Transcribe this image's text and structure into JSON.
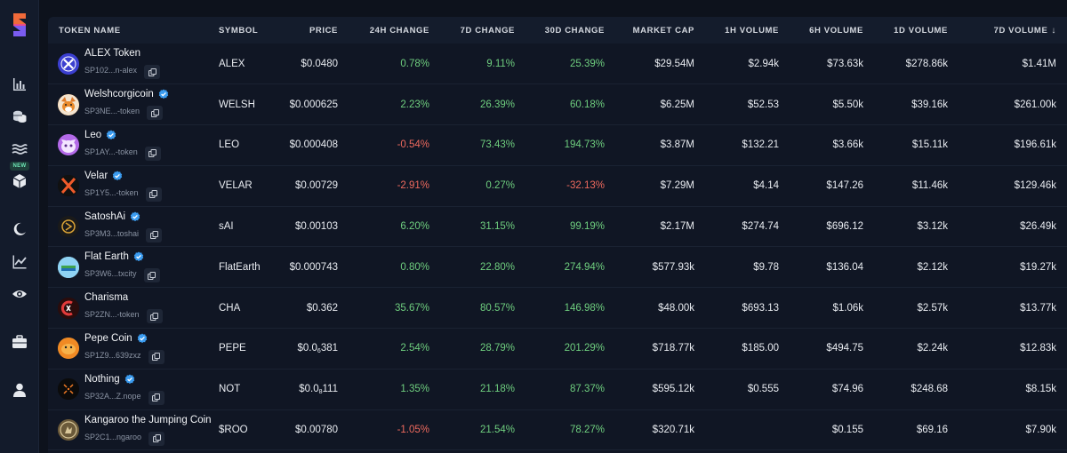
{
  "sidebar": {
    "logo": "stxtools-logo",
    "new_badge": "NEW",
    "items": [
      {
        "icon": "bar-chart-icon"
      },
      {
        "icon": "coins-stack-icon"
      },
      {
        "icon": "waves-icon"
      },
      {
        "icon": "cube-icon"
      },
      {
        "icon": "moon-icon"
      },
      {
        "icon": "trending-chart-icon"
      },
      {
        "icon": "eye-icon"
      },
      {
        "icon": "briefcase-icon"
      },
      {
        "icon": "user-icon"
      }
    ]
  },
  "table": {
    "headers": {
      "token_name": "TOKEN NAME",
      "symbol": "SYMBOL",
      "price": "PRICE",
      "change_24h": "24H CHANGE",
      "change_7d": "7D CHANGE",
      "change_30d": "30D CHANGE",
      "market_cap": "MARKET CAP",
      "volume_1h": "1H VOLUME",
      "volume_6h": "6H VOLUME",
      "volume_1d": "1D VOLUME",
      "volume_7d": "7D VOLUME",
      "sort_indicator": "↓"
    },
    "rows": [
      {
        "name": "ALEX Token",
        "verified": false,
        "address": "SP102...n-alex",
        "symbol": "ALEX",
        "price": "$0.0480",
        "c24": "0.78%",
        "c7": "9.11%",
        "c30": "25.39%",
        "mcap": "$29.54M",
        "v1h": "$2.94k",
        "v6h": "$73.63k",
        "v1d": "$278.86k",
        "v7d": "$1.41M",
        "logo_color": "#3b3fd0"
      },
      {
        "name": "Welshcorgicoin",
        "verified": true,
        "address": "SP3NE...-token",
        "symbol": "WELSH",
        "price": "$0.000625",
        "c24": "2.23%",
        "c7": "26.39%",
        "c30": "60.18%",
        "mcap": "$6.25M",
        "v1h": "$52.53",
        "v6h": "$5.50k",
        "v1d": "$39.16k",
        "v7d": "$261.00k",
        "logo_color": "#e98a2c"
      },
      {
        "name": "Leo",
        "verified": true,
        "address": "SP1AY...-token",
        "symbol": "LEO",
        "price": "$0.000408",
        "c24": "-0.54%",
        "c7": "73.43%",
        "c30": "194.73%",
        "mcap": "$3.87M",
        "v1h": "$132.21",
        "v6h": "$3.66k",
        "v1d": "$15.11k",
        "v7d": "$196.61k",
        "logo_color": "#9b4fd6"
      },
      {
        "name": "Velar",
        "verified": true,
        "address": "SP1Y5...-token",
        "symbol": "VELAR",
        "price": "$0.00729",
        "c24": "-2.91%",
        "c7": "0.27%",
        "c30": "-32.13%",
        "mcap": "$7.29M",
        "v1h": "$4.14",
        "v6h": "$147.26",
        "v1d": "$11.46k",
        "v7d": "$129.46k",
        "logo_color": "#111111"
      },
      {
        "name": "SatoshAi",
        "verified": true,
        "address": "SP3M3...toshai",
        "symbol": "sAI",
        "price": "$0.00103",
        "c24": "6.20%",
        "c7": "31.15%",
        "c30": "99.19%",
        "mcap": "$2.17M",
        "v1h": "$274.74",
        "v6h": "$696.12",
        "v1d": "$3.12k",
        "v7d": "$26.49k",
        "logo_color": "#1a1a1a"
      },
      {
        "name": "Flat Earth",
        "verified": true,
        "address": "SP3W6...txcity",
        "symbol": "FlatEarth",
        "price": "$0.000743",
        "c24": "0.80%",
        "c7": "22.80%",
        "c30": "274.94%",
        "mcap": "$577.93k",
        "v1h": "$9.78",
        "v6h": "$136.04",
        "v1d": "$2.12k",
        "v7d": "$19.27k",
        "logo_color": "#8fd3f4"
      },
      {
        "name": "Charisma",
        "verified": false,
        "address": "SP2ZN...-token",
        "symbol": "CHA",
        "price": "$0.362",
        "c24": "35.67%",
        "c7": "80.57%",
        "c30": "146.98%",
        "mcap": "$48.00k",
        "v1h": "$693.13",
        "v6h": "$1.06k",
        "v1d": "$2.57k",
        "v7d": "$13.77k",
        "logo_color": "#2a0c0c"
      },
      {
        "name": "Pepe Coin",
        "verified": true,
        "address": "SP1Z9...639zxz",
        "symbol": "PEPE",
        "price_main": "$0.0",
        "price_sub": "6",
        "price_tail": "381",
        "c24": "2.54%",
        "c7": "28.79%",
        "c30": "201.29%",
        "mcap": "$718.77k",
        "v1h": "$185.00",
        "v6h": "$494.75",
        "v1d": "$2.24k",
        "v7d": "$12.83k",
        "logo_color": "#f08a24"
      },
      {
        "name": "Nothing",
        "verified": true,
        "address": "SP32A...Z.nope",
        "symbol": "NOT",
        "price_main": "$0.0",
        "price_sub": "8",
        "price_tail": "111",
        "c24": "1.35%",
        "c7": "21.18%",
        "c30": "87.37%",
        "mcap": "$595.12k",
        "v1h": "$0.555",
        "v6h": "$74.96",
        "v1d": "$248.68",
        "v7d": "$8.15k",
        "logo_color": "#0b0b0b"
      },
      {
        "name": "Kangaroo the Jumping Coin",
        "verified": false,
        "address": "SP2C1...ngaroo",
        "symbol": "$ROO",
        "price": "$0.00780",
        "c24": "-1.05%",
        "c7": "21.54%",
        "c30": "78.27%",
        "mcap": "$320.71k",
        "v1h": "",
        "v6h": "$0.155",
        "v1d": "$69.16",
        "v7d": "$7.90k",
        "logo_color": "#6b5a3a"
      }
    ]
  },
  "colors": {
    "positive": "#6fcf7f",
    "negative": "#ef6a5e",
    "verified": "#3b9cf0"
  }
}
